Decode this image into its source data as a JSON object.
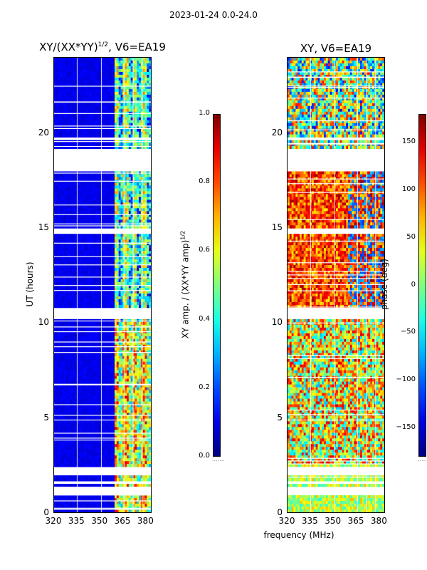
{
  "suptitle": "2023-01-24 0.0-24.0",
  "chart_data": [
    {
      "type": "heatmap",
      "title_text": "XY/(XX*YY)",
      "title_exp": "1/2",
      "title_suffix": ", V6=EA19",
      "xlabel": "",
      "ylabel": "UT (hours)",
      "xlim": [
        320,
        384
      ],
      "ylim": [
        0,
        24
      ],
      "x_ticks": [
        "320",
        "335",
        "350",
        "365",
        "380"
      ],
      "x_tick_values": [
        320,
        335,
        350,
        365,
        380
      ],
      "y_ticks": [
        "0",
        "5",
        "10",
        "15",
        "20"
      ],
      "y_tick_values": [
        0,
        5,
        10,
        15,
        20
      ],
      "colorbar": {
        "label_text": "XY amp. / (XX*YY amp)",
        "label_exp": "1/2",
        "range": [
          0,
          1
        ],
        "ticks": [
          "0.0",
          "0.2",
          "0.4",
          "0.6",
          "0.8",
          "1.0"
        ],
        "tick_values": [
          0,
          0.2,
          0.4,
          0.6,
          0.8,
          1.0
        ]
      },
      "gaps_hours": [
        [
          0.85,
          1.35
        ],
        [
          1.55,
          1.7
        ],
        [
          1.95,
          2.2
        ],
        [
          2.3,
          2.4
        ],
        [
          10.25,
          10.75
        ],
        [
          14.75,
          15.05
        ],
        [
          18.05,
          19.25
        ],
        [
          19.6,
          19.85
        ]
      ],
      "values_note": "low (~0.02) below ~360 MHz; patchy 0.3-0.9 at 360-380 MHz"
    },
    {
      "type": "heatmap",
      "title_text": "XY, V6=EA19",
      "xlabel": "frequency (MHz)",
      "ylabel": "",
      "xlim": [
        320,
        384
      ],
      "ylim": [
        0,
        24
      ],
      "x_ticks": [
        "320",
        "335",
        "350",
        "365",
        "380"
      ],
      "x_tick_values": [
        320,
        335,
        350,
        365,
        380
      ],
      "y_ticks": [
        "0",
        "5",
        "10",
        "15",
        "20"
      ],
      "y_tick_values": [
        0,
        5,
        10,
        15,
        20
      ],
      "colorbar": {
        "label_text": "phase (deg)",
        "range": [
          -180,
          180
        ],
        "ticks": [
          "−150",
          "−100",
          "−50",
          "0",
          "50",
          "100",
          "150"
        ],
        "tick_values": [
          -150,
          -100,
          -50,
          0,
          50,
          100,
          150
        ]
      },
      "gaps_hours": [
        [
          0.85,
          1.35
        ],
        [
          1.55,
          1.7
        ],
        [
          1.95,
          2.2
        ],
        [
          2.3,
          2.4
        ],
        [
          10.25,
          10.75
        ],
        [
          14.75,
          15.05
        ],
        [
          18.05,
          19.25
        ],
        [
          19.6,
          19.85
        ]
      ],
      "values_note": "mixed phases ~0-150 deg with noisy structure; orange/red dominant 10-18 h"
    }
  ]
}
